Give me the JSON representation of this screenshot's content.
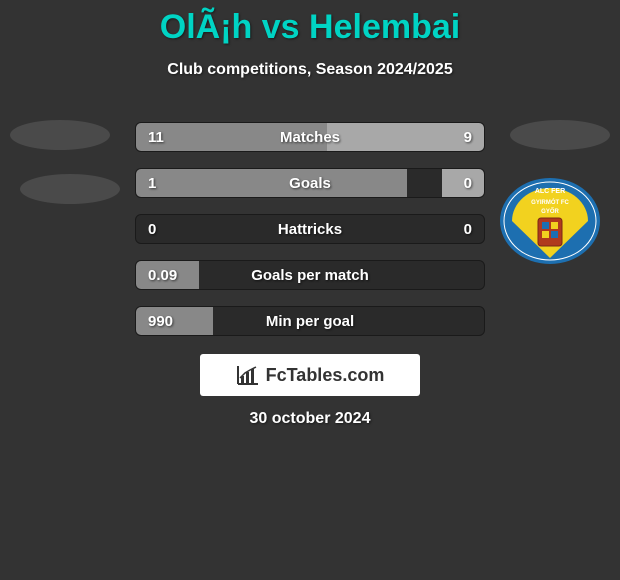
{
  "title": "OlÃ¡h vs Helembai",
  "subtitle": "Club competitions, Season 2024/2025",
  "date": "30 october 2024",
  "brand": "FcTables.com",
  "colors": {
    "background": "#333333",
    "title": "#00d4c4",
    "text": "#ffffff",
    "bar_bg": "#2a2a2a",
    "bar_left": "#888888",
    "bar_right": "#a8a8a8",
    "badge": "#4a4a4a",
    "brand_bg": "#ffffff",
    "brand_text": "#333333"
  },
  "bars": [
    {
      "label": "Matches",
      "left": "11",
      "right": "9",
      "left_pct": 55,
      "right_pct": 45
    },
    {
      "label": "Goals",
      "left": "1",
      "right": "0",
      "left_pct": 78,
      "right_pct": 12
    },
    {
      "label": "Hattricks",
      "left": "0",
      "right": "0",
      "left_pct": 0,
      "right_pct": 0
    },
    {
      "label": "Goals per match",
      "left": "0.09",
      "right": "",
      "left_pct": 18,
      "right_pct": 0
    },
    {
      "label": "Min per goal",
      "left": "990",
      "right": "",
      "left_pct": 22,
      "right_pct": 0
    }
  ],
  "crest": {
    "top_text": "ALC FER",
    "mid_text": "GYIRMÓT FC",
    "bottom_text": "GYŐR",
    "blue": "#1d6fb0",
    "yellow": "#f2d21f"
  }
}
